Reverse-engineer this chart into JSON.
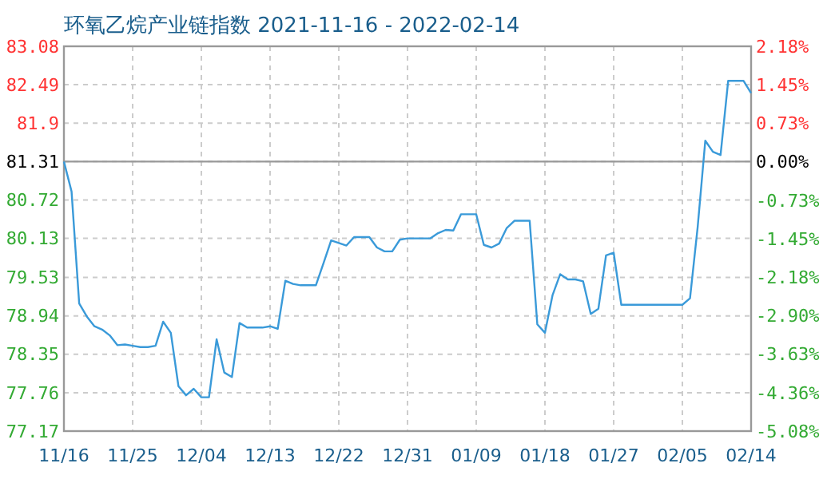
{
  "chart_data": {
    "type": "line",
    "title": "环氧乙烷产业链指数 2021-11-16 - 2022-02-14",
    "x": [
      "2021-11-16",
      "2021-11-17",
      "2021-11-18",
      "2021-11-19",
      "2021-11-20",
      "2021-11-21",
      "2021-11-22",
      "2021-11-23",
      "2021-11-24",
      "2021-11-25",
      "2021-11-26",
      "2021-11-27",
      "2021-11-28",
      "2021-11-29",
      "2021-11-30",
      "2021-12-01",
      "2021-12-02",
      "2021-12-03",
      "2021-12-04",
      "2021-12-05",
      "2021-12-06",
      "2021-12-07",
      "2021-12-08",
      "2021-12-09",
      "2021-12-10",
      "2021-12-11",
      "2021-12-12",
      "2021-12-13",
      "2021-12-14",
      "2021-12-15",
      "2021-12-16",
      "2021-12-17",
      "2021-12-18",
      "2021-12-19",
      "2021-12-20",
      "2021-12-21",
      "2021-12-22",
      "2021-12-23",
      "2021-12-24",
      "2021-12-25",
      "2021-12-26",
      "2021-12-27",
      "2021-12-28",
      "2021-12-29",
      "2021-12-30",
      "2021-12-31",
      "2022-01-01",
      "2022-01-02",
      "2022-01-03",
      "2022-01-04",
      "2022-01-05",
      "2022-01-06",
      "2022-01-07",
      "2022-01-08",
      "2022-01-09",
      "2022-01-10",
      "2022-01-11",
      "2022-01-12",
      "2022-01-13",
      "2022-01-14",
      "2022-01-15",
      "2022-01-16",
      "2022-01-17",
      "2022-01-18",
      "2022-01-19",
      "2022-01-20",
      "2022-01-21",
      "2022-01-22",
      "2022-01-23",
      "2022-01-24",
      "2022-01-25",
      "2022-01-26",
      "2022-01-27",
      "2022-01-28",
      "2022-01-29",
      "2022-01-30",
      "2022-01-31",
      "2022-02-01",
      "2022-02-02",
      "2022-02-03",
      "2022-02-04",
      "2022-02-05",
      "2022-02-06",
      "2022-02-07",
      "2022-02-08",
      "2022-02-09",
      "2022-02-10",
      "2022-02-11",
      "2022-02-12",
      "2022-02-13",
      "2022-02-14"
    ],
    "series": [
      {
        "color": "#3a9ad9",
        "values": [
          81.31,
          80.85,
          79.13,
          78.93,
          78.78,
          78.73,
          78.64,
          78.49,
          78.5,
          78.48,
          78.46,
          78.46,
          78.48,
          78.85,
          78.68,
          77.86,
          77.72,
          77.82,
          77.69,
          77.69,
          78.58,
          78.07,
          78.0,
          78.83,
          78.76,
          78.76,
          78.76,
          78.78,
          78.74,
          79.48,
          79.43,
          79.41,
          79.41,
          79.41,
          79.75,
          80.1,
          80.06,
          80.02,
          80.15,
          80.15,
          80.15,
          79.99,
          79.93,
          79.93,
          80.11,
          80.13,
          80.13,
          80.13,
          80.13,
          80.21,
          80.26,
          80.25,
          80.5,
          80.5,
          80.5,
          80.03,
          79.99,
          80.05,
          80.29,
          80.4,
          80.4,
          80.4,
          78.81,
          78.68,
          79.26,
          79.58,
          79.5,
          79.5,
          79.47,
          78.97,
          79.05,
          79.87,
          79.91,
          79.11,
          79.11,
          79.11,
          79.11,
          79.11,
          79.11,
          79.11,
          79.11,
          79.11,
          79.21,
          80.3,
          81.63,
          81.46,
          81.41,
          82.55,
          82.55,
          82.55,
          82.36
        ]
      }
    ],
    "xlim": [
      "2021-11-16",
      "2022-02-14"
    ],
    "xticks": [
      {
        "value": "2021-11-16",
        "label": "11/16"
      },
      {
        "value": "2021-11-25",
        "label": "11/25"
      },
      {
        "value": "2021-12-04",
        "label": "12/04"
      },
      {
        "value": "2021-12-13",
        "label": "12/13"
      },
      {
        "value": "2021-12-22",
        "label": "12/22"
      },
      {
        "value": "2021-12-31",
        "label": "12/31"
      },
      {
        "value": "2022-01-09",
        "label": "01/09"
      },
      {
        "value": "2022-01-18",
        "label": "01/18"
      },
      {
        "value": "2022-01-27",
        "label": "01/27"
      },
      {
        "value": "2022-02-05",
        "label": "02/05"
      },
      {
        "value": "2022-02-14",
        "label": "02/14"
      }
    ],
    "ylim": [
      77.17,
      83.08
    ],
    "yticks": [
      77.17,
      77.76,
      78.35,
      78.94,
      79.53,
      80.13,
      80.72,
      81.31,
      {
        "value": 81.9,
        "label": "81.9"
      },
      82.49,
      83.08
    ],
    "y2lim": [
      -5.08,
      2.18
    ],
    "y2ticks": [
      {
        "value": -5.08,
        "label": "-5.08%"
      },
      {
        "value": -4.36,
        "label": "-4.36%"
      },
      {
        "value": -3.63,
        "label": "-3.63%"
      },
      {
        "value": -2.9,
        "label": "-2.90%"
      },
      {
        "value": -2.18,
        "label": "-2.18%"
      },
      {
        "value": -1.45,
        "label": "-1.45%"
      },
      {
        "value": -0.73,
        "label": "-0.73%"
      },
      {
        "value": 0,
        "label": "0.00%"
      },
      {
        "value": 0.73,
        "label": "0.73%"
      },
      {
        "value": 1.45,
        "label": "1.45%"
      },
      {
        "value": 2.18,
        "label": "2.18%"
      }
    ],
    "ref_lines": [
      {
        "axis": "y",
        "value": 81.31,
        "color": "#999999"
      }
    ],
    "grid": true,
    "marker": "none",
    "line_style": "solid"
  }
}
